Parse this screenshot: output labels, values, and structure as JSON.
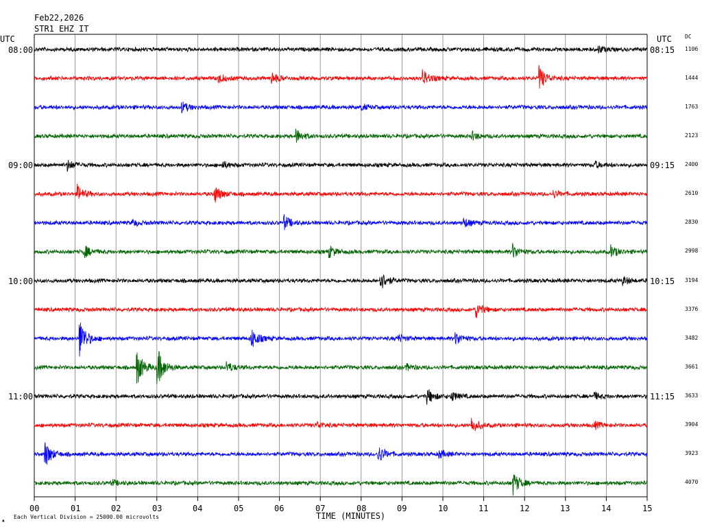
{
  "header": {
    "date": "Feb22,2026",
    "station": "STR1 EHZ IT",
    "utc_left": "UTC",
    "utc_right": "UTC",
    "dc_label": "DC"
  },
  "footer": {
    "scale_note": "Each Vertical Division = 25000.00 microvolts"
  },
  "colors": {
    "trace_cycle": [
      "#000000",
      "#ff0000",
      "#0000ff",
      "#006400"
    ],
    "grid": "#808080",
    "frame": "#000000"
  },
  "chart_data": {
    "type": "line",
    "title": "Feb22,2026",
    "subtitle": "STR1 EHZ IT",
    "xlabel": "TIME (MINUTES)",
    "ylabel": "",
    "xlim": [
      0,
      15
    ],
    "x_ticks": [
      "00",
      "01",
      "02",
      "03",
      "04",
      "05",
      "06",
      "07",
      "08",
      "09",
      "10",
      "11",
      "12",
      "13",
      "14",
      "15"
    ],
    "minutes_per_line": 15,
    "left_time_labels": [
      "08:00",
      "09:00",
      "10:00",
      "11:00"
    ],
    "right_time_labels": [
      "08:15",
      "09:15",
      "10:15",
      "11:15"
    ],
    "traces": [
      {
        "dc": "1106",
        "events": [
          [
            13.8,
            5
          ]
        ]
      },
      {
        "dc": "1444",
        "events": [
          [
            4.5,
            7
          ],
          [
            5.8,
            9
          ],
          [
            9.5,
            12
          ],
          [
            12.35,
            18
          ]
        ]
      },
      {
        "dc": "1763",
        "events": [
          [
            3.6,
            8
          ],
          [
            8.0,
            4
          ]
        ]
      },
      {
        "dc": "2123",
        "events": [
          [
            6.4,
            10
          ],
          [
            10.7,
            6
          ]
        ]
      },
      {
        "dc": "2400",
        "events": [
          [
            0.8,
            8
          ],
          [
            4.6,
            5
          ],
          [
            13.7,
            5
          ]
        ]
      },
      {
        "dc": "2610",
        "events": [
          [
            1.05,
            12
          ],
          [
            4.4,
            14
          ],
          [
            12.7,
            5
          ]
        ]
      },
      {
        "dc": "2830",
        "events": [
          [
            6.1,
            11
          ],
          [
            10.5,
            7
          ],
          [
            2.4,
            4
          ]
        ]
      },
      {
        "dc": "2998",
        "events": [
          [
            1.2,
            10
          ],
          [
            7.2,
            9
          ],
          [
            11.7,
            11
          ],
          [
            14.1,
            9
          ]
        ]
      },
      {
        "dc": "3194",
        "events": [
          [
            8.45,
            16
          ],
          [
            14.4,
            6
          ]
        ]
      },
      {
        "dc": "3376",
        "events": [
          [
            10.8,
            12
          ]
        ]
      },
      {
        "dc": "3482",
        "events": [
          [
            1.1,
            30
          ],
          [
            5.3,
            16
          ],
          [
            8.9,
            5
          ],
          [
            10.3,
            10
          ]
        ]
      },
      {
        "dc": "3661",
        "events": [
          [
            2.5,
            26
          ],
          [
            3.0,
            30
          ],
          [
            4.7,
            8
          ],
          [
            9.1,
            5
          ]
        ]
      },
      {
        "dc": "3633",
        "events": [
          [
            9.6,
            12
          ],
          [
            10.2,
            7
          ],
          [
            13.7,
            5
          ]
        ]
      },
      {
        "dc": "3904",
        "events": [
          [
            6.9,
            5
          ],
          [
            10.7,
            11
          ],
          [
            13.7,
            5
          ]
        ]
      },
      {
        "dc": "3923",
        "events": [
          [
            0.25,
            20
          ],
          [
            8.4,
            14
          ],
          [
            9.9,
            6
          ]
        ]
      },
      {
        "dc": "4070",
        "events": [
          [
            11.7,
            18
          ],
          [
            1.9,
            4
          ]
        ]
      }
    ]
  }
}
